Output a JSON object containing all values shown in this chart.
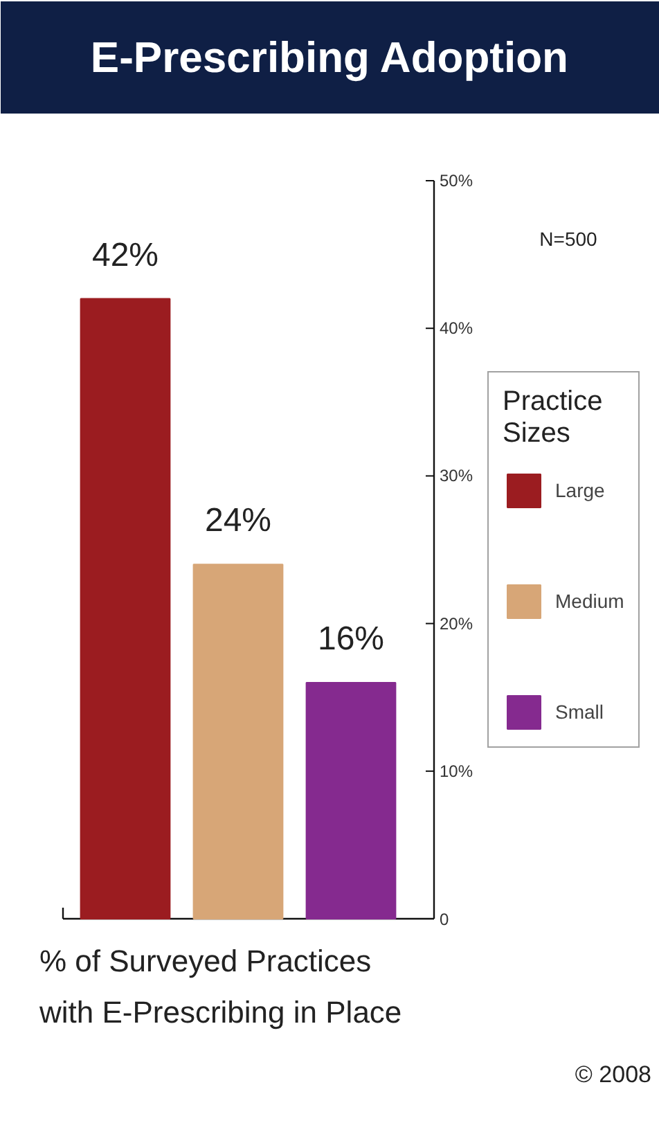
{
  "chart_data": {
    "type": "bar",
    "title": "E-Prescribing Adoption",
    "xlabel": "% of Surveyed Practices\nwith E-Prescribing in Place",
    "legend_title": "Practice Sizes",
    "categories": [
      null,
      null,
      null
    ],
    "series": [
      {
        "name": "Large",
        "color": "#9b1c20",
        "values": [
          42,
          null,
          null
        ],
        "value_labels": [
          "42%",
          null,
          null
        ]
      },
      {
        "name": "Medium",
        "color": "#d7a677",
        "values": [
          null,
          24,
          null
        ],
        "value_labels": [
          null,
          "24%",
          null
        ]
      },
      {
        "name": "Small",
        "color": "#852a8f",
        "values": [
          null,
          null,
          16
        ],
        "value_labels": [
          null,
          null,
          "16%"
        ]
      }
    ],
    "ylim": [
      0,
      50
    ],
    "yticks": [
      {
        "value": 0,
        "label": "0"
      },
      {
        "value": 10,
        "label": "10%"
      },
      {
        "value": 20,
        "label": "20%"
      },
      {
        "value": 30,
        "label": "30%"
      },
      {
        "value": 40,
        "label": "40%"
      },
      {
        "value": 50,
        "label": "50%"
      }
    ],
    "tick_labels": "y",
    "grid": false,
    "legend": "right",
    "annotations": [
      "N=500",
      "© 2008"
    ]
  }
}
